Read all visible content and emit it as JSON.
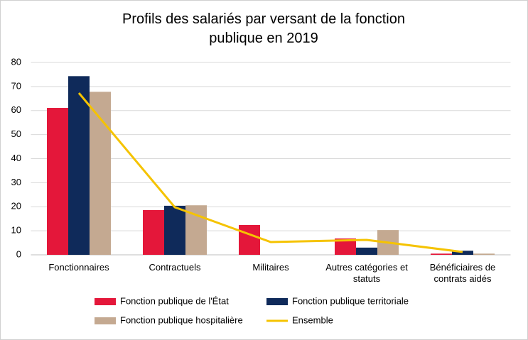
{
  "chart_data": {
    "type": "bar",
    "title": "Profils des salariés par versant de la fonction publique en 2019",
    "categories": [
      "Fonctionnaires",
      "Contractuels",
      "Militaires",
      "Autres catégories et statuts",
      "Bénéficiaires de contrats aidés"
    ],
    "series": [
      {
        "name": "Fonction publique de l'État",
        "color": "#e4173a",
        "values": [
          61.1,
          18.6,
          12.4,
          6.8,
          0.5
        ]
      },
      {
        "name": "Fonction publique territoriale",
        "color": "#0f2a5a",
        "values": [
          74.3,
          20.4,
          0,
          3,
          1.7
        ]
      },
      {
        "name": "Fonction publique hospitalière",
        "color": "#c4a991",
        "values": [
          67.8,
          20.6,
          0,
          10.3,
          0.5
        ]
      },
      {
        "name": "Ensemble",
        "color": "#f5c300",
        "type": "line",
        "values": [
          67.3,
          19.8,
          5.3,
          6.2,
          1.2
        ]
      }
    ],
    "ylim": [
      0,
      80
    ],
    "yticks": [
      0,
      10,
      20,
      30,
      40,
      50,
      60,
      70,
      80
    ],
    "grid": true
  }
}
